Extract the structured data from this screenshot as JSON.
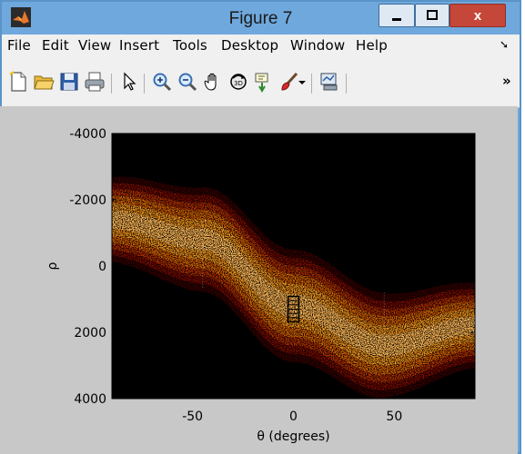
{
  "window": {
    "title": "Figure 7",
    "close_label": "x"
  },
  "menubar": {
    "items": [
      "File",
      "Edit",
      "View",
      "Insert",
      "Tools",
      "Desktop",
      "Window",
      "Help"
    ]
  },
  "toolbar": {
    "icons": [
      "new-figure-icon",
      "open-file-icon",
      "save-icon",
      "print-icon",
      "pointer-icon",
      "zoom-in-icon",
      "zoom-out-icon",
      "pan-hand-icon",
      "rotate-3d-icon",
      "data-cursor-icon",
      "brush-icon",
      "dropdown-arrow-icon",
      "link-plot-icon",
      "more-icon"
    ],
    "overflow_label": "»"
  },
  "chart_data": {
    "type": "heatmap",
    "title": "",
    "xlabel": "θ (degrees)",
    "ylabel": "ρ",
    "xlim": [
      -90,
      90
    ],
    "ylim": [
      -4000,
      4000
    ],
    "y_reversed": true,
    "x_ticks": [
      -50,
      0,
      50
    ],
    "y_ticks": [
      -4000,
      -2000,
      0,
      2000,
      4000
    ],
    "colormap": "hot",
    "background": "#000000",
    "band_center_rho": [
      {
        "theta": -90,
        "rho": -1400
      },
      {
        "theta": -45,
        "rho": -800
      },
      {
        "theta": 0,
        "rho": 1200
      },
      {
        "theta": 45,
        "rho": 2400
      },
      {
        "theta": 90,
        "rho": 1800
      }
    ],
    "annotation": "rectangle marker near θ=0, ρ≈1300"
  }
}
